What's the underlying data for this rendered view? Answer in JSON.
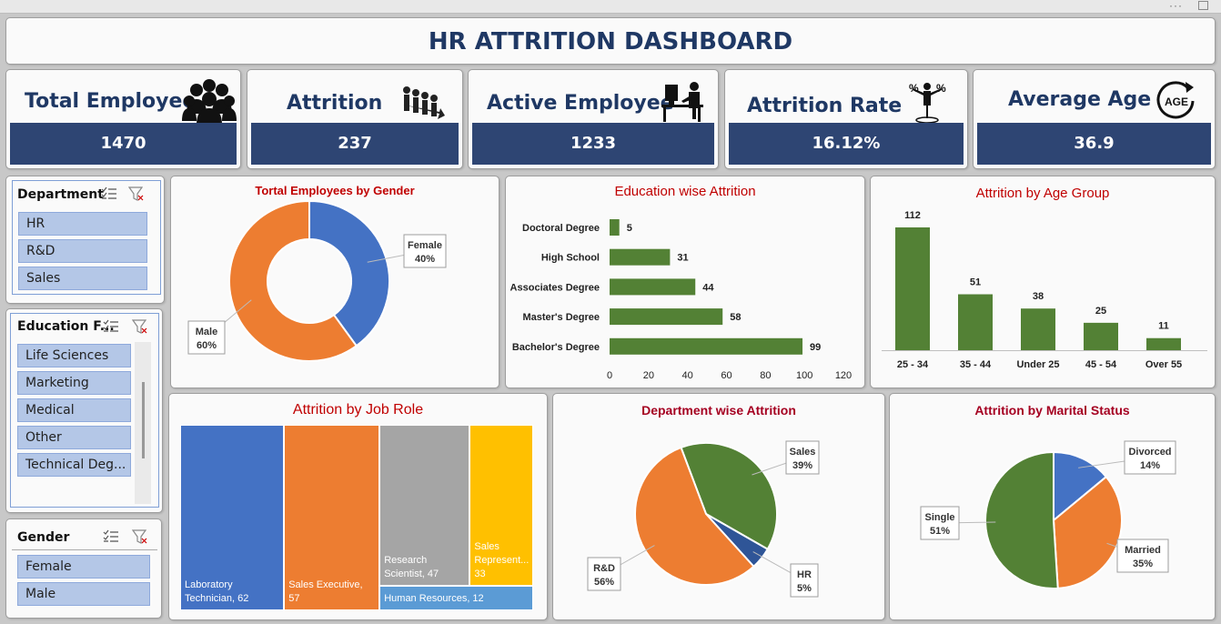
{
  "title": "HR ATTRITION DASHBOARD",
  "colors": {
    "navy": "#2e4573",
    "title": "#1f3864",
    "green": "#538135",
    "orange": "#ed7d31",
    "blue": "#4472c4",
    "gray": "#a5a5a5",
    "gold": "#ffc000",
    "red": "#c00000"
  },
  "kpis": [
    {
      "label": "Total Employee",
      "value": "1470",
      "icon": "people-group-icon"
    },
    {
      "label": "Attrition",
      "value": "237",
      "icon": "attrition-people-icon"
    },
    {
      "label": "Active Employee",
      "value": "1233",
      "icon": "worker-at-desk-icon"
    },
    {
      "label": "Attrition Rate",
      "value": "16.12%",
      "icon": "percent-person-icon"
    },
    {
      "label": "Average Age",
      "value": "36.9",
      "icon": "age-cycle-icon"
    }
  ],
  "slicers": {
    "department": {
      "title": "Department",
      "items": [
        "HR",
        "R&D",
        "Sales"
      ]
    },
    "education": {
      "title": "Education F...",
      "items": [
        "Life Sciences",
        "Marketing",
        "Medical",
        "Other",
        "Technical Deg..."
      ]
    },
    "gender": {
      "title": "Gender",
      "items": [
        "Female",
        "Male"
      ]
    }
  },
  "chart_data": [
    {
      "type": "pie",
      "title": "Tortal Employees by Gender",
      "categories": [
        "Female",
        "Male"
      ],
      "values": [
        40,
        60
      ],
      "labels": [
        "Female\n40%",
        "Male\n60%"
      ]
    },
    {
      "type": "bar",
      "title": "Education wise Attrition",
      "categories": [
        "Doctoral Degree",
        "High School",
        "Associates Degree",
        "Master's Degree",
        "Bachelor's Degree"
      ],
      "values": [
        5,
        31,
        44,
        58,
        99
      ],
      "xlim": [
        0,
        120
      ],
      "ticks": [
        "0",
        "20",
        "40",
        "60",
        "80",
        "100",
        "120"
      ]
    },
    {
      "type": "bar",
      "title": "Attrition by Age Group",
      "categories": [
        "25 - 34",
        "35 - 44",
        "Under 25",
        "45 - 54",
        "Over 55"
      ],
      "values": [
        112,
        51,
        38,
        25,
        11
      ]
    },
    {
      "type": "treemap",
      "title": "Attrition by Job Role",
      "items": [
        {
          "label": "Laboratory Technician, 62",
          "value": 62
        },
        {
          "label": "Sales Executive, 57",
          "value": 57
        },
        {
          "label": "Research Scientist, 47",
          "value": 47
        },
        {
          "label": "Sales Represent... 33",
          "value": 33
        },
        {
          "label": "Human Resources, 12",
          "value": 12
        }
      ]
    },
    {
      "type": "pie",
      "title": "Department wise Attrition",
      "categories": [
        "Sales",
        "HR",
        "R&D"
      ],
      "values": [
        39,
        5,
        56
      ],
      "labels": [
        "Sales\n39%",
        "HR\n5%",
        "R&D\n56%"
      ]
    },
    {
      "type": "pie",
      "title": "Attrition by Marital Status",
      "categories": [
        "Divorced",
        "Married",
        "Single"
      ],
      "values": [
        14,
        35,
        51
      ],
      "labels": [
        "Divorced\n14%",
        "Married\n35%",
        "Single\n51%"
      ]
    }
  ]
}
